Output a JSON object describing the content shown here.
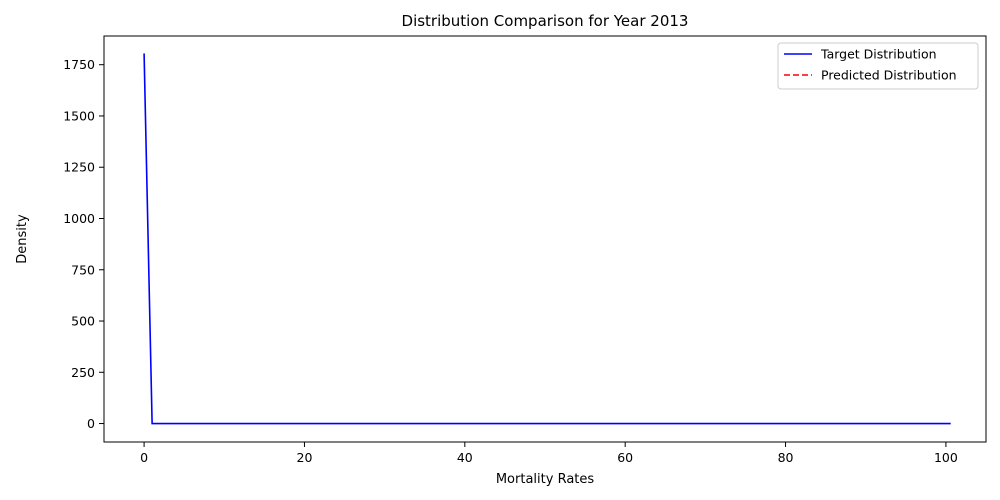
{
  "chart_data": {
    "type": "line",
    "title": "Distribution Comparison for Year 2013",
    "xlabel": "Mortality Rates",
    "ylabel": "Density",
    "xlim": [
      -5,
      105
    ],
    "ylim": [
      -90,
      1890
    ],
    "xticks": [
      0,
      20,
      40,
      60,
      80,
      100
    ],
    "yticks": [
      0,
      250,
      500,
      750,
      1000,
      1250,
      1500,
      1750
    ],
    "grid": false,
    "legend_position": "top-right",
    "series": [
      {
        "name": "Target Distribution",
        "color": "#0000ff",
        "style": "solid",
        "x": [
          0,
          1,
          100.6
        ],
        "y": [
          1805,
          0,
          0
        ]
      },
      {
        "name": "Predicted Distribution",
        "color": "#ff0000",
        "style": "dashed",
        "x": [],
        "y": []
      }
    ]
  }
}
